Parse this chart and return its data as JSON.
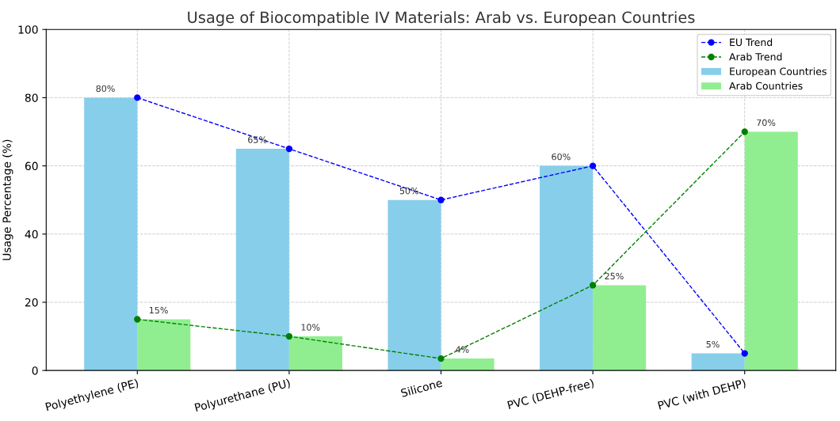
{
  "chart_data": {
    "type": "bar",
    "title": "Usage of Biocompatible IV Materials: Arab vs. European Countries",
    "ylabel": "Usage Percentage (%)",
    "categories": [
      "Polyethylene (PE)",
      "Polyurethane (PU)",
      "Silicone",
      "PVC (DEHP-free)",
      "PVC (with DEHP)"
    ],
    "series": [
      {
        "name": "EU Trend",
        "type": "line",
        "color": "#0000ff",
        "values": [
          80,
          65,
          50,
          60,
          5
        ]
      },
      {
        "name": "Arab Trend",
        "type": "line",
        "color": "#008000",
        "values": [
          15,
          10,
          3.5,
          25,
          70
        ]
      },
      {
        "name": "European Countries",
        "color": "#87ceeb",
        "values": [
          80,
          65,
          50,
          60,
          5
        ],
        "value_labels": [
          "80%",
          "65%",
          "50%",
          "60%",
          "5%"
        ]
      },
      {
        "name": "Arab Countries",
        "color": "#90ee90",
        "values": [
          15,
          10,
          3.5,
          25,
          70
        ],
        "value_labels": [
          "15%",
          "10%",
          "4%",
          "25%",
          "70%"
        ]
      }
    ],
    "ylim": [
      0,
      100
    ],
    "yticks": [
      0,
      20,
      40,
      60,
      80,
      100
    ],
    "grid": true,
    "legend": "top right",
    "marker": "circle",
    "line_style": "dashed"
  }
}
